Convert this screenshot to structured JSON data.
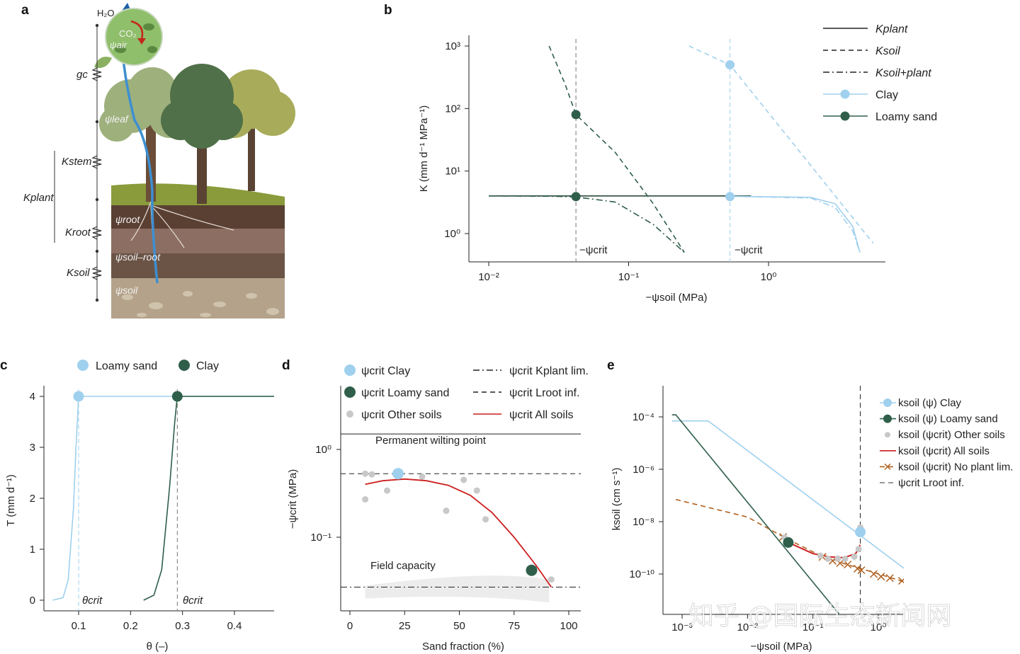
{
  "panels": {
    "a": "a",
    "b": "b",
    "c": "c",
    "d": "d",
    "e": "e"
  },
  "colors": {
    "clay": "#9fd0ee",
    "loamy": "#2f5f4a",
    "red": "#cc1f1f",
    "orange": "#b06020",
    "grey": "#c8c8c8"
  },
  "panel_a": {
    "h2o": "H₂O",
    "co2": "CO₂",
    "psi_air": "ψair",
    "gc": "gc",
    "psi_leaf": "ψleaf",
    "k_stem": "Kstem",
    "k_plant": "Kplant",
    "k_root": "Kroot",
    "k_soil": "Ksoil",
    "psi_root": "ψroot",
    "psi_soil_root": "ψsoil–root",
    "psi_soil": "ψsoil"
  },
  "chart_data": [
    {
      "id": "b",
      "type": "line",
      "ylabel": "K (mm d⁻¹ MPa⁻¹)",
      "xlabel": "−ψsoil (MPa)",
      "xscale": "log",
      "yscale": "log",
      "xticks": [
        "10⁻²",
        "10⁻¹",
        "10⁰"
      ],
      "yticks": [
        "10⁰",
        "10¹",
        "10²",
        "10³"
      ],
      "legend": [
        "Kplant",
        "Ksoil",
        "Ksoil+plant",
        "Clay",
        "Loamy sand"
      ],
      "annotations": [
        "−ψcrit",
        "−ψcrit"
      ],
      "psi_crit": {
        "loamy_sand": 0.042,
        "clay": 0.53
      },
      "series": [
        {
          "name": "Kplant",
          "style": "solid",
          "x": [
            0.01,
            0.75
          ],
          "y": [
            4,
            4
          ]
        },
        {
          "name": "Ksoil Loamy sand",
          "style": "dashed",
          "x": [
            0.027,
            0.035,
            0.042,
            0.08,
            0.15,
            0.25
          ],
          "y": [
            1000,
            250,
            80,
            20,
            3,
            0.5
          ]
        },
        {
          "name": "Ksoil+plant Loamy sand",
          "style": "dashdot",
          "x": [
            0.01,
            0.03,
            0.042,
            0.08,
            0.15,
            0.25
          ],
          "y": [
            4,
            3.95,
            3.85,
            3.2,
            1.4,
            0.5
          ]
        },
        {
          "name": "Ksoil Clay",
          "style": "dashed",
          "x": [
            0.27,
            0.53,
            5.6
          ],
          "y": [
            1000,
            500,
            0.7
          ]
        },
        {
          "name": "Ksoil+plant Clay",
          "style": "dashdot",
          "x": [
            0.53,
            2,
            3,
            4,
            4.5
          ],
          "y": [
            3.95,
            3.7,
            2.6,
            1.1,
            0.5
          ]
        },
        {
          "name": "Clay Kplant",
          "style": "solid",
          "x": [
            0.53,
            2,
            3,
            4,
            4.5
          ],
          "y": [
            3.95,
            3.8,
            3.0,
            1.3,
            0.5
          ]
        }
      ],
      "points": [
        {
          "series": "Loamy sand",
          "x": 0.042,
          "y": 80
        },
        {
          "series": "Loamy sand",
          "x": 0.042,
          "y": 3.9
        },
        {
          "series": "Clay",
          "x": 0.53,
          "y": 500
        },
        {
          "series": "Clay",
          "x": 0.53,
          "y": 3.9
        }
      ]
    },
    {
      "id": "c",
      "type": "line",
      "ylabel": "T (mm d⁻¹)",
      "xlabel": "θ (–)",
      "xticks": [
        "0.1",
        "0.2",
        "0.3",
        "0.4"
      ],
      "yticks": [
        "0",
        "1",
        "2",
        "3",
        "4"
      ],
      "legend": [
        "Loamy sand",
        "Clay"
      ],
      "annotations": [
        "θcrit",
        "θcrit"
      ],
      "theta_crit": {
        "loamy_sand": 0.1,
        "clay": 0.29
      },
      "series": [
        {
          "name": "Loamy sand",
          "x": [
            0.05,
            0.07,
            0.08,
            0.09,
            0.095,
            0.1,
            0.48
          ],
          "y": [
            0,
            0.05,
            0.4,
            1.8,
            3.0,
            4,
            4
          ]
        },
        {
          "name": "Clay",
          "x": [
            0.225,
            0.245,
            0.26,
            0.275,
            0.285,
            0.29,
            0.48
          ],
          "y": [
            0,
            0.1,
            0.6,
            2.2,
            3.5,
            4,
            4
          ]
        }
      ],
      "points": [
        {
          "series": "Loamy sand",
          "x": 0.1,
          "y": 4
        },
        {
          "series": "Clay",
          "x": 0.29,
          "y": 4
        }
      ]
    },
    {
      "id": "d",
      "type": "scatter",
      "ylabel": "−ψcrit (MPa)",
      "xlabel": "Sand fraction (%)",
      "yscale": "log",
      "xticks": [
        "0",
        "25",
        "50",
        "75",
        "100"
      ],
      "yticks": [
        "10⁰",
        "10⁻¹"
      ],
      "legend": [
        "ψcrit Clay",
        "ψcrit Loamy sand",
        "ψcrit Other soils",
        "ψcrit Kplant lim.",
        "ψcrit Lroot inf.",
        "ψcrit All soils"
      ],
      "annotations": [
        "Permanent wilting point",
        "Field capacity"
      ],
      "ref_lines": {
        "permanent_wilting_point": 1.5,
        "kplant_lim": 0.027,
        "lroot_inf": 0.53
      },
      "clay": {
        "x": 22,
        "y": 0.53
      },
      "loamy_sand": {
        "x": 83,
        "y": 0.042
      },
      "other_soils": [
        {
          "x": 7,
          "y": 0.53
        },
        {
          "x": 10,
          "y": 0.52
        },
        {
          "x": 7,
          "y": 0.27
        },
        {
          "x": 17,
          "y": 0.34
        },
        {
          "x": 33,
          "y": 0.49
        },
        {
          "x": 44,
          "y": 0.2
        },
        {
          "x": 52,
          "y": 0.45
        },
        {
          "x": 58,
          "y": 0.34
        },
        {
          "x": 62,
          "y": 0.16
        },
        {
          "x": 92,
          "y": 0.033
        }
      ],
      "all_soils": {
        "x": [
          7,
          15,
          25,
          35,
          45,
          55,
          65,
          75,
          85,
          92
        ],
        "y": [
          0.4,
          0.44,
          0.46,
          0.44,
          0.39,
          0.3,
          0.19,
          0.1,
          0.048,
          0.027
        ]
      }
    },
    {
      "id": "e",
      "type": "line",
      "ylabel": "ksoil (cm s⁻¹)",
      "xlabel": "−ψsoil (MPa)",
      "xscale": "log",
      "yscale": "log",
      "xticks": [
        "10⁻³",
        "10⁻²",
        "10⁻¹",
        "10⁰"
      ],
      "yticks": [
        "10⁻⁴",
        "10⁻⁶",
        "10⁻⁸",
        "10⁻¹⁰"
      ],
      "legend": [
        "ksoil (ψ) Clay",
        "ksoil (ψ) Loamy sand",
        "ksoil (ψcrit) Other soils",
        "ksoil (ψcrit) All soils",
        "ksoil (ψcrit) No plant lim.",
        "ψcrit Lroot inf."
      ],
      "series": [
        {
          "name": "ksoil (ψ) Clay",
          "x": [
            0.0007,
            0.0025,
            2.6
          ],
          "y": [
            7e-05,
            7e-05,
            1.5e-10
          ]
        },
        {
          "name": "ksoil (ψ) Loamy sand",
          "x": [
            0.0007,
            0.0008,
            0.25
          ],
          "y": [
            0.00012,
            0.00012,
            3e-12
          ]
        },
        {
          "name": "ksoil (ψcrit) All soils",
          "x": [
            0.042,
            0.1,
            0.18,
            0.3,
            0.45,
            0.53
          ],
          "y": [
            1.6e-09,
            6e-10,
            4.5e-10,
            4.2e-10,
            6e-10,
            1.3e-09
          ]
        },
        {
          "name": "ksoil (ψcrit) No plant lim.",
          "x": [
            0.0008,
            0.01,
            0.04,
            0.1,
            0.3,
            0.8,
            2.5
          ],
          "y": [
            7e-08,
            1.5e-08,
            2.2e-09,
            7e-10,
            2.5e-10,
            1.2e-10,
            5e-11
          ]
        }
      ],
      "no_plant_markers": [
        {
          "x": 0.035,
          "y": 2.6e-09
        },
        {
          "x": 0.14,
          "y": 4.5e-10
        },
        {
          "x": 0.2,
          "y": 3.2e-10
        },
        {
          "x": 0.26,
          "y": 2.6e-10
        },
        {
          "x": 0.34,
          "y": 2.3e-10
        },
        {
          "x": 0.48,
          "y": 1.6e-10
        },
        {
          "x": 0.55,
          "y": 1.4e-10
        },
        {
          "x": 0.85,
          "y": 1e-10
        },
        {
          "x": 1.1,
          "y": 8e-11
        },
        {
          "x": 1.5,
          "y": 7e-11
        },
        {
          "x": 2.3,
          "y": 5.5e-11
        }
      ],
      "other_soils": [
        {
          "x": 0.037,
          "y": 2.5e-09
        },
        {
          "x": 0.13,
          "y": 5e-10
        },
        {
          "x": 0.17,
          "y": 3.8e-10
        },
        {
          "x": 0.24,
          "y": 3.9e-10
        },
        {
          "x": 0.31,
          "y": 3.8e-10
        },
        {
          "x": 0.43,
          "y": 4.6e-10
        },
        {
          "x": 0.5,
          "y": 9e-10
        },
        {
          "x": 0.53,
          "y": 6e-09
        }
      ],
      "clay": {
        "x": 0.53,
        "y": 4e-09
      },
      "loamy_sand": {
        "x": 0.042,
        "y": 1.6e-09
      },
      "vline_x": 0.53
    }
  ],
  "watermark": "知乎 @国际生态新闻网"
}
